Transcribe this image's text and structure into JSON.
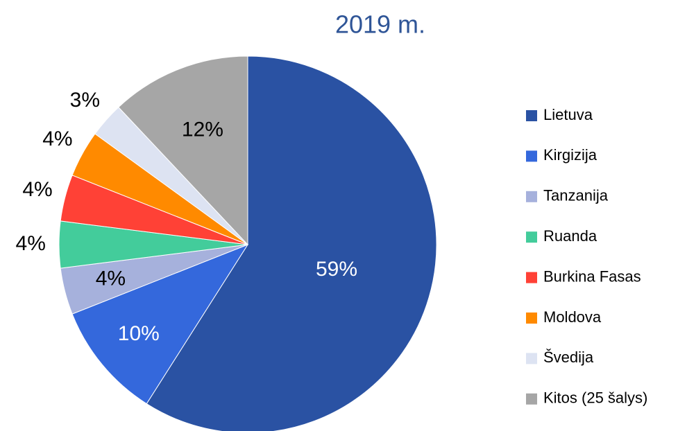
{
  "chart_data": {
    "type": "pie",
    "title": "2019 m.",
    "categories": [
      "Lietuva",
      "Kirgizija",
      "Tanzanija",
      "Ruanda",
      "Burkina Fasas",
      "Moldova",
      "Švedija",
      "Kitos (25 šalys)"
    ],
    "values": [
      59,
      10,
      4,
      4,
      4,
      4,
      3,
      12
    ],
    "value_labels": [
      "59%",
      "10%",
      "4%",
      "4%",
      "4%",
      "4%",
      "3%",
      "12%"
    ],
    "colors": [
      "#2a52a3",
      "#3468dc",
      "#a6b1dc",
      "#43cc9b",
      "#ff4136",
      "#ff8a00",
      "#dde3f2",
      "#a6a6a6"
    ],
    "legend": "right"
  }
}
